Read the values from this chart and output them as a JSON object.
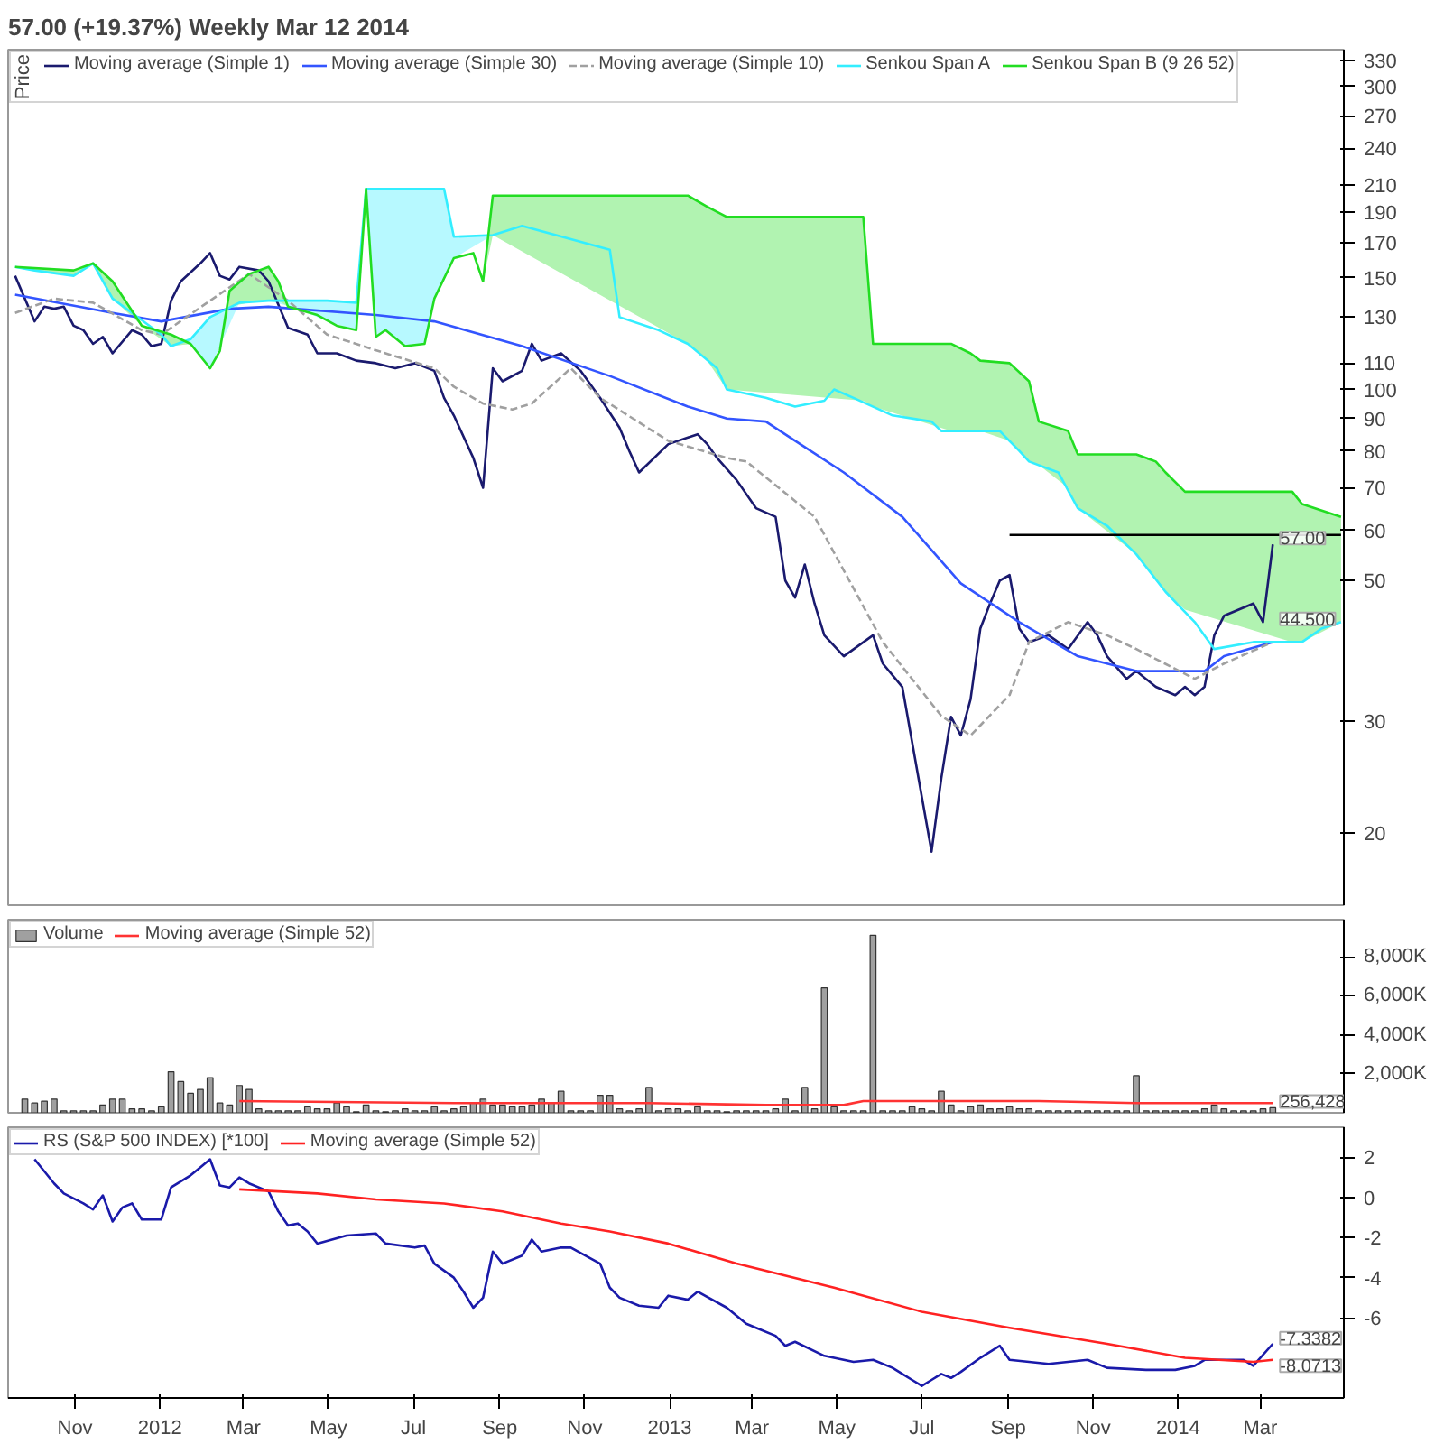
{
  "chart_data": [
    {
      "type": "line",
      "title": "57.00 (+19.37%)    Weekly  Mar 12 2014",
      "legend_title": "Price",
      "legend": "top left",
      "log": true,
      "grid": false,
      "tick_labels": "y",
      "xlim": [
        "2011-09-14",
        "2014-04-30"
      ],
      "ylim": [
        15.4,
        343
      ],
      "yticks": [
        20,
        30,
        50,
        60,
        70,
        80,
        90,
        100,
        110,
        130,
        150,
        170,
        190,
        210,
        240,
        270,
        300,
        330
      ],
      "series": [
        {
          "name": "Moving average (Simple 1)",
          "color": "#1a1a6e",
          "x": [
            "2011-09-19",
            "2011-10-03",
            "2011-10-10",
            "2011-10-17",
            "2011-10-24",
            "2011-10-31",
            "2011-11-07",
            "2011-11-14",
            "2011-11-21",
            "2011-11-28",
            "2011-12-12",
            "2011-12-19",
            "2011-12-26",
            "2012-01-02",
            "2012-01-09",
            "2012-01-16",
            "2012-01-30",
            "2012-02-06",
            "2012-02-13",
            "2012-02-20",
            "2012-02-27",
            "2012-03-12",
            "2012-03-19",
            "2012-04-02",
            "2012-04-16",
            "2012-04-23",
            "2012-05-07",
            "2012-05-21",
            "2012-06-04",
            "2012-06-18",
            "2012-07-02",
            "2012-07-16",
            "2012-07-23",
            "2012-07-30",
            "2012-08-13",
            "2012-08-20",
            "2012-08-27",
            "2012-09-03",
            "2012-09-17",
            "2012-09-24",
            "2012-10-01",
            "2012-10-15",
            "2012-10-29",
            "2012-11-12",
            "2012-11-26",
            "2012-12-03",
            "2012-12-10",
            "2012-12-31",
            "2013-01-21",
            "2013-01-28",
            "2013-02-04",
            "2013-02-18",
            "2013-03-04",
            "2013-03-18",
            "2013-03-25",
            "2013-04-01",
            "2013-04-08",
            "2013-04-15",
            "2013-04-22",
            "2013-05-06",
            "2013-05-27",
            "2013-06-03",
            "2013-06-17",
            "2013-07-08",
            "2013-07-15",
            "2013-07-22",
            "2013-07-29",
            "2013-08-05",
            "2013-08-12",
            "2013-08-19",
            "2013-08-26",
            "2013-09-02",
            "2013-09-09",
            "2013-09-16",
            "2013-09-30",
            "2013-10-14",
            "2013-10-28",
            "2013-11-04",
            "2013-11-11",
            "2013-11-25",
            "2013-12-02",
            "2013-12-16",
            "2013-12-30",
            "2014-01-06",
            "2014-01-13",
            "2014-01-20",
            "2014-01-27",
            "2014-02-03",
            "2014-02-24",
            "2014-03-03",
            "2014-03-10"
          ],
          "values": [
            151,
            128,
            135,
            134,
            135,
            126,
            124,
            118,
            121,
            114,
            124,
            122,
            117,
            118,
            138,
            148,
            158,
            164,
            151,
            149,
            156,
            154,
            148,
            125,
            122,
            114,
            114,
            111,
            110,
            108,
            110,
            107,
            97,
            91,
            78,
            70,
            108,
            103,
            107,
            118,
            111,
            114,
            107,
            97,
            87,
            80,
            74,
            82,
            85,
            82,
            78,
            72,
            65,
            63,
            50,
            47,
            53,
            46,
            41,
            38,
            41,
            37,
            34,
            18.7,
            24.4,
            30.5,
            28.5,
            32.5,
            42,
            46,
            50,
            51,
            42,
            40,
            41,
            39,
            43,
            41,
            38,
            35,
            36,
            34,
            33,
            34,
            33,
            34,
            41,
            44,
            46,
            43,
            57
          ]
        },
        {
          "name": "Moving average (Simple 30)",
          "color": "#3355ff",
          "x": [
            "2011-09-19",
            "2011-11-28",
            "2012-01-02",
            "2012-02-20",
            "2012-03-19",
            "2012-06-04",
            "2012-07-16",
            "2012-09-17",
            "2012-11-19",
            "2013-01-14",
            "2013-02-11",
            "2013-03-11",
            "2013-04-01",
            "2013-05-06",
            "2013-06-17",
            "2013-07-29",
            "2013-09-09",
            "2013-10-21",
            "2013-12-02",
            "2013-12-30",
            "2014-01-20",
            "2014-02-03",
            "2014-03-10"
          ],
          "values": [
            141,
            132,
            128,
            134,
            135,
            131,
            128,
            117,
            105,
            94,
            90,
            89,
            83,
            74,
            63,
            49.5,
            43,
            38,
            36,
            36,
            36,
            38,
            40
          ]
        },
        {
          "name": "Moving average (Simple 10)",
          "color": "#a0a0a0",
          "line_style": "dashed",
          "x": [
            "2011-09-19",
            "2011-10-17",
            "2011-11-14",
            "2011-12-19",
            "2012-01-02",
            "2012-02-06",
            "2012-03-05",
            "2012-04-02",
            "2012-04-30",
            "2012-06-11",
            "2012-07-16",
            "2012-07-30",
            "2012-08-20",
            "2012-09-10",
            "2012-09-24",
            "2012-10-22",
            "2012-11-12",
            "2012-12-31",
            "2013-02-11",
            "2013-02-25",
            "2013-04-15",
            "2013-06-03",
            "2013-07-15",
            "2013-08-05",
            "2013-09-02",
            "2013-09-16",
            "2013-10-14",
            "2013-11-11",
            "2013-12-02",
            "2014-01-13",
            "2014-02-03",
            "2014-03-10"
          ],
          "values": [
            132,
            139,
            137,
            124,
            122,
            138,
            152,
            138,
            122,
            114,
            108,
            101,
            95,
            93,
            95,
            108,
            97,
            83,
            78,
            77,
            63,
            40,
            30.6,
            28.5,
            33,
            40,
            43,
            41,
            39,
            35,
            37,
            40
          ]
        },
        {
          "name": "Senkou Span A",
          "color": "#33eeff",
          "x": [
            "2011-09-19",
            "2011-10-03",
            "2011-10-31",
            "2011-11-14",
            "2011-11-28",
            "2011-12-12",
            "2012-01-02",
            "2012-01-09",
            "2012-01-23",
            "2012-02-06",
            "2012-02-27",
            "2012-03-19",
            "2012-04-09",
            "2012-04-30",
            "2012-05-21",
            "2012-05-28",
            "2012-06-04",
            "2012-06-11",
            "2012-06-25",
            "2012-07-09",
            "2012-07-16",
            "2012-07-23",
            "2012-07-30",
            "2012-08-27",
            "2012-09-17",
            "2012-11-19",
            "2012-11-26",
            "2012-12-24",
            "2013-01-14",
            "2013-02-04",
            "2013-02-11",
            "2013-03-11",
            "2013-04-01",
            "2013-04-22",
            "2013-04-29",
            "2013-05-13",
            "2013-06-10",
            "2013-07-08",
            "2013-07-15",
            "2013-08-26",
            "2013-09-09",
            "2013-09-16",
            "2013-10-07",
            "2013-10-21",
            "2013-11-11",
            "2013-12-02",
            "2013-12-23",
            "2014-01-13",
            "2014-01-27",
            "2014-02-24",
            "2014-03-10",
            "2014-03-31",
            "2014-04-14",
            "2014-04-28"
          ],
          "values": [
            156,
            154,
            151,
            158,
            139,
            132,
            122,
            117,
            120,
            130,
            137,
            138,
            138,
            138,
            137,
            207,
            207,
            207,
            207,
            207,
            207,
            207,
            174,
            175,
            181,
            166,
            130,
            124,
            118,
            108,
            100,
            97,
            94,
            96,
            100,
            97,
            91,
            89,
            86,
            86,
            80,
            77,
            74,
            65,
            61,
            55,
            48,
            43,
            39,
            40,
            40,
            40,
            42,
            43
          ],
          "upper": [
            156,
            154,
            151,
            158,
            139,
            132,
            122,
            117,
            120,
            130,
            137,
            138,
            138,
            138,
            137,
            207,
            207,
            207,
            207,
            207,
            207,
            207,
            174,
            175,
            181,
            166,
            130,
            124,
            118,
            108,
            100,
            97,
            94,
            96,
            100,
            97,
            91,
            89,
            86,
            86,
            80,
            77,
            74,
            65,
            61,
            55,
            48,
            43,
            39,
            40,
            40,
            40,
            42,
            43
          ],
          "lower": [
            156,
            154,
            151,
            158,
            139,
            132,
            122,
            117,
            118,
            108,
            137,
            138,
            134,
            128,
            124,
            207,
            121,
            124,
            117,
            118,
            139,
            150,
            161,
            175,
            181,
            166,
            130,
            124,
            118,
            108,
            100,
            97,
            94,
            96,
            100,
            97,
            91,
            89,
            86,
            86,
            80,
            77,
            74,
            65,
            61,
            55,
            48,
            43,
            39,
            40,
            40,
            40,
            42,
            43
          ]
        },
        {
          "name": "Senkou Span B (9 26 52)",
          "color": "#22dd22",
          "x": [
            "2011-09-19",
            "2011-10-31",
            "2011-11-14",
            "2011-11-28",
            "2011-12-19",
            "2012-01-09",
            "2012-01-23",
            "2012-02-06",
            "2012-02-13",
            "2012-02-20",
            "2012-03-05",
            "2012-03-19",
            "2012-03-26",
            "2012-04-02",
            "2012-04-23",
            "2012-05-07",
            "2012-05-21",
            "2012-05-28",
            "2012-06-04",
            "2012-06-11",
            "2012-06-25",
            "2012-07-09",
            "2012-07-16",
            "2012-07-30",
            "2012-08-13",
            "2012-08-20",
            "2012-08-27",
            "2013-01-14",
            "2013-01-28",
            "2013-02-11",
            "2013-05-20",
            "2013-05-27",
            "2013-07-22",
            "2013-08-05",
            "2013-08-12",
            "2013-09-02",
            "2013-09-16",
            "2013-09-23",
            "2013-10-14",
            "2013-10-21",
            "2013-12-02",
            "2013-12-16",
            "2013-12-23",
            "2014-01-06",
            "2014-03-24",
            "2014-03-31",
            "2014-04-28"
          ],
          "values": [
            156,
            154,
            158,
            148,
            126,
            122,
            118,
            108,
            115,
            143,
            152,
            156,
            148,
            135,
            131,
            126,
            124,
            207,
            121,
            124,
            117,
            118,
            139,
            161,
            164,
            148,
            202,
            202,
            194,
            187,
            187,
            118,
            118,
            114,
            111,
            110,
            103,
            89,
            86,
            79,
            79,
            77,
            74,
            69,
            69,
            66,
            63
          ],
          "upper": [
            156,
            154,
            158,
            148,
            126,
            122,
            118,
            108,
            115,
            143,
            152,
            156,
            148,
            135,
            131,
            126,
            124,
            207,
            121,
            124,
            117,
            118,
            139,
            161,
            164,
            148,
            202,
            202,
            194,
            187,
            187,
            118,
            118,
            114,
            111,
            110,
            103,
            89,
            86,
            79,
            79,
            77,
            74,
            69,
            69,
            66,
            63
          ],
          "lower": [
            156,
            151,
            158,
            139,
            126,
            117,
            118,
            108,
            115,
            135,
            137,
            138,
            138,
            135,
            131,
            126,
            124,
            207,
            121,
            124,
            117,
            118,
            139,
            161,
            164,
            148,
            175,
            118,
            111,
            100,
            96,
            94,
            86,
            86,
            86,
            83,
            77,
            76,
            70,
            65,
            55,
            50,
            48,
            45,
            40,
            40,
            43
          ]
        },
        {
          "color": "#000000",
          "x": [
            "2013-09-02",
            "2014-04-28"
          ],
          "values": [
            59,
            59
          ]
        }
      ],
      "annotations": [
        {
          "text": "57.00",
          "x": "2014-03-10",
          "y": 57
        },
        {
          "text": "44.500",
          "x": "2014-03-10",
          "y": 44.5
        }
      ]
    },
    {
      "type": "bar",
      "legend": "top left",
      "grid": false,
      "tick_labels": "y",
      "xlim": [
        "2011-09-14",
        "2014-04-30"
      ],
      "ylim": [
        0,
        9900
      ],
      "yticks": [
        {
          "value": 2000,
          "label": "2,000K"
        },
        {
          "value": 4000,
          "label": "4,000K"
        },
        {
          "value": 6000,
          "label": "6,000K"
        },
        {
          "value": 8000,
          "label": "8,000K"
        }
      ],
      "x": [
        "2011-09-26",
        "2011-10-03",
        "2011-10-10",
        "2011-10-17",
        "2011-10-24",
        "2011-10-31",
        "2011-11-07",
        "2011-11-14",
        "2011-11-21",
        "2011-11-28",
        "2011-12-05",
        "2011-12-12",
        "2011-12-19",
        "2011-12-26",
        "2012-01-02",
        "2012-01-09",
        "2012-01-16",
        "2012-01-23",
        "2012-01-30",
        "2012-02-06",
        "2012-02-13",
        "2012-02-20",
        "2012-02-27",
        "2012-03-05",
        "2012-03-12",
        "2012-03-19",
        "2012-03-26",
        "2012-04-02",
        "2012-04-09",
        "2012-04-16",
        "2012-04-23",
        "2012-04-30",
        "2012-05-07",
        "2012-05-14",
        "2012-05-21",
        "2012-05-28",
        "2012-06-04",
        "2012-06-11",
        "2012-06-18",
        "2012-06-25",
        "2012-07-02",
        "2012-07-09",
        "2012-07-16",
        "2012-07-23",
        "2012-07-30",
        "2012-08-06",
        "2012-08-13",
        "2012-08-20",
        "2012-08-27",
        "2012-09-03",
        "2012-09-10",
        "2012-09-17",
        "2012-09-24",
        "2012-10-01",
        "2012-10-08",
        "2012-10-15",
        "2012-10-22",
        "2012-10-29",
        "2012-11-05",
        "2012-11-12",
        "2012-11-19",
        "2012-11-26",
        "2012-12-03",
        "2012-12-10",
        "2012-12-17",
        "2012-12-24",
        "2012-12-31",
        "2013-01-07",
        "2013-01-14",
        "2013-01-21",
        "2013-01-28",
        "2013-02-04",
        "2013-02-11",
        "2013-02-18",
        "2013-02-25",
        "2013-03-04",
        "2013-03-11",
        "2013-03-18",
        "2013-03-25",
        "2013-04-01",
        "2013-04-08",
        "2013-04-15",
        "2013-04-22",
        "2013-04-29",
        "2013-05-06",
        "2013-05-13",
        "2013-05-20",
        "2013-05-27",
        "2013-06-03",
        "2013-06-10",
        "2013-06-17",
        "2013-06-24",
        "2013-07-01",
        "2013-07-08",
        "2013-07-15",
        "2013-07-22",
        "2013-07-29",
        "2013-08-05",
        "2013-08-12",
        "2013-08-19",
        "2013-08-26",
        "2013-09-02",
        "2013-09-09",
        "2013-09-16",
        "2013-09-23",
        "2013-09-30",
        "2013-10-07",
        "2013-10-14",
        "2013-10-21",
        "2013-10-28",
        "2013-11-04",
        "2013-11-11",
        "2013-11-18",
        "2013-11-25",
        "2013-12-02",
        "2013-12-09",
        "2013-12-16",
        "2013-12-23",
        "2013-12-30",
        "2014-01-06",
        "2014-01-13",
        "2014-01-20",
        "2014-01-27",
        "2014-02-03",
        "2014-02-10",
        "2014-02-17",
        "2014-02-24",
        "2014-03-03",
        "2014-03-10"
      ],
      "series": [
        {
          "name": "Volume",
          "color": "#a0a0a0",
          "values": [
            700,
            500,
            600,
            700,
            100,
            100,
            100,
            100,
            400,
            700,
            700,
            200,
            200,
            100,
            300,
            2100,
            1600,
            1000,
            1200,
            1800,
            500,
            400,
            1400,
            1200,
            200,
            100,
            100,
            100,
            100,
            300,
            200,
            200,
            500,
            300,
            50,
            400,
            100,
            50,
            100,
            200,
            100,
            100,
            300,
            100,
            200,
            300,
            500,
            700,
            400,
            400,
            300,
            300,
            400,
            700,
            500,
            1100,
            100,
            100,
            100,
            900,
            900,
            200,
            100,
            200,
            1300,
            100,
            200,
            200,
            100,
            300,
            100,
            100,
            50,
            100,
            100,
            100,
            100,
            200,
            700,
            100,
            1300,
            200,
            6400,
            300,
            100,
            100,
            100,
            9100,
            100,
            100,
            100,
            300,
            200,
            100,
            1100,
            400,
            100,
            300,
            400,
            200,
            200,
            300,
            200,
            200,
            100,
            100,
            100,
            100,
            100,
            100,
            100,
            100,
            100,
            100,
            1900,
            100,
            100,
            100,
            100,
            100,
            100,
            200,
            400,
            200,
            100,
            100,
            100,
            200,
            256.428
          ]
        },
        {
          "name": "Moving average (Simple 52)",
          "type": "line",
          "color": "#ff3333",
          "x": [
            "2012-02-27",
            "2012-07-30",
            "2012-12-17",
            "2013-03-11",
            "2013-05-06",
            "2013-05-20",
            "2013-09-23",
            "2013-12-02",
            "2014-03-10"
          ],
          "values": [
            600,
            500,
            500,
            400,
            400,
            600,
            600,
            500,
            500
          ]
        }
      ],
      "annotations": [
        {
          "text": "256,428",
          "x": "2014-03-10",
          "y": 256.428
        }
      ]
    },
    {
      "type": "line",
      "legend": "top left",
      "grid": false,
      "xlim": [
        "2011-09-14",
        "2014-04-30"
      ],
      "ylim": [
        -10,
        3.5
      ],
      "yticks": [
        -6,
        -4,
        -2,
        0,
        2
      ],
      "xticks": [
        {
          "value": "2011-11-01",
          "label": "Nov"
        },
        {
          "value": "2012-01-01",
          "label": "2012"
        },
        {
          "value": "2012-03-01",
          "label": "Mar"
        },
        {
          "value": "2012-05-01",
          "label": "May"
        },
        {
          "value": "2012-07-01",
          "label": "Jul"
        },
        {
          "value": "2012-09-01",
          "label": "Sep"
        },
        {
          "value": "2012-11-01",
          "label": "Nov"
        },
        {
          "value": "2013-01-01",
          "label": "2013"
        },
        {
          "value": "2013-03-01",
          "label": "Mar"
        },
        {
          "value": "2013-05-01",
          "label": "May"
        },
        {
          "value": "2013-07-01",
          "label": "Jul"
        },
        {
          "value": "2013-09-01",
          "label": "Sep"
        },
        {
          "value": "2013-11-01",
          "label": "Nov"
        },
        {
          "value": "2014-01-01",
          "label": "2014"
        },
        {
          "value": "2014-03-01",
          "label": "Mar"
        }
      ],
      "series": [
        {
          "name": "RS (S&P 500 INDEX) [*100]",
          "color": "#1a1aaa",
          "x": [
            "2011-10-03",
            "2011-10-17",
            "2011-10-24",
            "2011-11-07",
            "2011-11-14",
            "2011-11-21",
            "2011-11-28",
            "2011-12-05",
            "2011-12-12",
            "2011-12-19",
            "2012-01-02",
            "2012-01-09",
            "2012-01-23",
            "2012-01-30",
            "2012-02-06",
            "2012-02-13",
            "2012-02-20",
            "2012-02-27",
            "2012-03-05",
            "2012-03-19",
            "2012-03-26",
            "2012-04-02",
            "2012-04-09",
            "2012-04-16",
            "2012-04-23",
            "2012-05-14",
            "2012-06-04",
            "2012-06-11",
            "2012-07-02",
            "2012-07-09",
            "2012-07-16",
            "2012-07-30",
            "2012-08-06",
            "2012-08-13",
            "2012-08-20",
            "2012-08-27",
            "2012-09-03",
            "2012-09-17",
            "2012-09-24",
            "2012-10-01",
            "2012-10-15",
            "2012-10-22",
            "2012-11-12",
            "2012-11-19",
            "2012-11-26",
            "2012-12-10",
            "2012-12-24",
            "2012-12-31",
            "2013-01-14",
            "2013-01-21",
            "2013-02-11",
            "2013-02-25",
            "2013-03-04",
            "2013-03-18",
            "2013-03-25",
            "2013-04-01",
            "2013-04-22",
            "2013-05-13",
            "2013-05-27",
            "2013-06-10",
            "2013-06-24",
            "2013-07-01",
            "2013-07-08",
            "2013-07-15",
            "2013-07-22",
            "2013-07-29",
            "2013-08-12",
            "2013-08-26",
            "2013-09-02",
            "2013-09-30",
            "2013-10-28",
            "2013-11-11",
            "2013-12-09",
            "2013-12-30",
            "2014-01-13",
            "2014-01-20",
            "2014-02-17",
            "2014-02-24",
            "2014-03-10"
          ],
          "values": [
            1.9,
            0.7,
            0.2,
            -0.3,
            -0.6,
            0.1,
            -1.2,
            -0.5,
            -0.3,
            -1.1,
            -1.1,
            0.5,
            1.1,
            1.5,
            1.9,
            0.6,
            0.5,
            1.0,
            0.7,
            0.3,
            -0.7,
            -1.4,
            -1.3,
            -1.7,
            -2.3,
            -1.9,
            -1.8,
            -2.3,
            -2.5,
            -2.4,
            -3.3,
            -4.0,
            -4.7,
            -5.5,
            -5.0,
            -2.7,
            -3.3,
            -2.9,
            -2.1,
            -2.7,
            -2.5,
            -2.5,
            -3.3,
            -4.5,
            -5.0,
            -5.4,
            -5.5,
            -4.9,
            -5.1,
            -4.7,
            -5.5,
            -6.3,
            -6.5,
            -6.9,
            -7.4,
            -7.2,
            -7.9,
            -8.2,
            -8.1,
            -8.5,
            -9.1,
            -9.4,
            -9.1,
            -8.8,
            -9.0,
            -8.7,
            -8.0,
            -7.4,
            -8.1,
            -8.3,
            -8.1,
            -8.5,
            -8.6,
            -8.6,
            -8.4,
            -8.1,
            -8.1,
            -8.4,
            -7.3
          ]
        },
        {
          "name": "Moving average (Simple 52)",
          "color": "#ff2222",
          "x": [
            "2012-02-27",
            "2012-04-23",
            "2012-06-04",
            "2012-07-23",
            "2012-09-03",
            "2012-10-15",
            "2012-11-19",
            "2012-12-31",
            "2013-02-18",
            "2013-04-29",
            "2013-07-01",
            "2013-09-02",
            "2013-11-11",
            "2014-01-06",
            "2014-02-24",
            "2014-03-10"
          ],
          "values": [
            0.4,
            0.2,
            -0.1,
            -0.3,
            -0.7,
            -1.3,
            -1.7,
            -2.3,
            -3.3,
            -4.5,
            -5.7,
            -6.5,
            -7.3,
            -8.0,
            -8.2,
            -8.1
          ]
        }
      ],
      "annotations": [
        {
          "text": "-7.3382",
          "x": "2014-03-10",
          "y": -7.3382
        },
        {
          "text": "-8.0713",
          "x": "2014-03-10",
          "y": -8.0713
        }
      ]
    }
  ]
}
